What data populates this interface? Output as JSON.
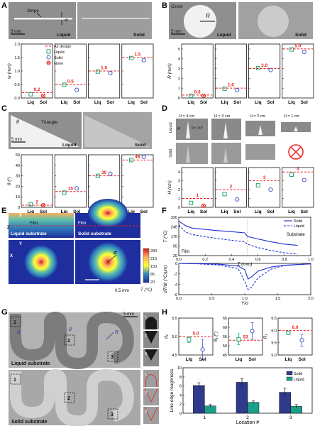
{
  "figure": {
    "panel_letters": [
      "A",
      "B",
      "C",
      "D",
      "E",
      "F",
      "G",
      "H"
    ],
    "colors": {
      "design": "#e8201c",
      "liquid": "#22a673",
      "solid": "#4b5cc4",
      "liquid_bar": "#1aa089",
      "solid_bar": "#2e3a8c",
      "photo_bg": "#8f8f8f",
      "photo_bg2": "#b2b2b2",
      "pattern": "#f1f1f1"
    },
    "legend_A": {
      "as_design": "As design",
      "liquid": "Liquid",
      "solid": "Solid",
      "none": "None"
    },
    "photo_labels": {
      "A": {
        "stripe": "Stripe",
        "w": "w",
        "scale": "5 mm",
        "liquid": "Liquid",
        "solid": "Solid"
      },
      "B": {
        "circle": "Circle",
        "R": "R",
        "scale": "5 mm",
        "liquid": "Liquid",
        "solid": "Solid"
      },
      "C": {
        "triangle": "Triangle",
        "theta": "θ",
        "scale": "5 mm",
        "liquid": "Liquid",
        "solid": "Solid"
      },
      "D": {
        "heights": [
          "H = 4 cm",
          "H = 3 cm",
          "H = 2 cm",
          "H = 1 cm"
        ],
        "theta": "θ = 10°",
        "H": "H",
        "liquid": "Liquid",
        "solid": "Solid"
      },
      "E": {
        "z": "Z",
        "x": "X",
        "y": "Y",
        "film": "Film",
        "liquid_sub": "Liquid substrate",
        "solid_sub": "Solid substrate",
        "sigma": "σ",
        "scale": "0.5 mm",
        "colorbar_label": "T (°C)",
        "colorbar_ticks": [
          "280",
          "215",
          "150",
          "85",
          "20"
        ]
      },
      "G": {
        "scale": "5 mm",
        "d": "d",
        "theta": "θ",
        "R": "R",
        "liquid_sub": "Liquid substrate",
        "solid_sub": "Solid substrate",
        "boxes": [
          "1",
          "2",
          "3"
        ]
      }
    }
  },
  "chart_data": [
    {
      "id": "A",
      "type": "scatter",
      "ylabel": "w (mm)",
      "ylim": [
        0,
        2.0
      ],
      "yticks": [
        "0.0",
        "0.5",
        "1.0",
        "1.5",
        "2.0"
      ],
      "categories": [
        "Liq",
        "Sol"
      ],
      "groups": [
        {
          "design": 0.2,
          "design_label": "0.2",
          "liquid": 0.14,
          "solid": null
        },
        {
          "design": 0.5,
          "design_label": "0.5",
          "liquid": 0.49,
          "solid": 0.3
        },
        {
          "design": 1.0,
          "design_label": "1.0",
          "liquid": 0.98,
          "solid": 0.92
        },
        {
          "design": 1.5,
          "design_label": "1.5",
          "liquid": 1.48,
          "solid": 1.4
        }
      ]
    },
    {
      "id": "B",
      "type": "scatter",
      "ylabel": "R (mm)",
      "ylim": [
        0,
        5.5
      ],
      "yticks": [
        "0",
        "1",
        "2",
        "3",
        "4",
        "5"
      ],
      "categories": [
        "Liq",
        "Sol"
      ],
      "groups": [
        {
          "design": 0.3,
          "design_label": "0.3",
          "liquid": 0.22,
          "solid": null
        },
        {
          "design": 1.0,
          "design_label": "1.0",
          "liquid": 0.95,
          "solid": 0.8
        },
        {
          "design": 3.0,
          "design_label": "3.0",
          "liquid": 3.05,
          "solid": 2.85
        },
        {
          "design": 5.0,
          "design_label": "5.0",
          "liquid": 4.95,
          "solid": 4.7
        }
      ]
    },
    {
      "id": "C",
      "type": "scatter",
      "ylabel": "θ (°)",
      "ylim": [
        0,
        50
      ],
      "yticks": [
        "0",
        "10",
        "20",
        "30",
        "40",
        "50"
      ],
      "categories": [
        "Liq",
        "Sol"
      ],
      "groups": [
        {
          "design": 2,
          "design_label": "2",
          "liquid": 3,
          "solid": null
        },
        {
          "design": 15,
          "design_label": "15",
          "liquid": 14,
          "solid": 18
        },
        {
          "design": 30,
          "design_label": "30",
          "liquid": 30,
          "solid": 32
        },
        {
          "design": 45,
          "design_label": "45",
          "liquid": 45,
          "solid": 48
        }
      ]
    },
    {
      "id": "D",
      "type": "scatter",
      "ylabel": "H (cm)",
      "ylim": [
        0,
        4.5
      ],
      "yticks": [
        "0",
        "1",
        "2",
        "3",
        "4"
      ],
      "categories": [
        "Liq",
        "Sol"
      ],
      "groups": [
        {
          "design": 1,
          "design_label": "1",
          "liquid": 0.5,
          "solid": null
        },
        {
          "design": 2,
          "design_label": "2",
          "liquid": 1.5,
          "solid": 0.9
        },
        {
          "design": 3,
          "design_label": "3",
          "liquid": 2.5,
          "solid": 2.0
        },
        {
          "design": 4,
          "design_label": "4",
          "liquid": 3.7,
          "solid": 3.1
        }
      ]
    },
    {
      "id": "F_top",
      "type": "line",
      "xlabel": "Z (mm)",
      "ylabel": "T (°C)",
      "xlim": [
        0,
        1.0
      ],
      "ylim": [
        20,
        320
      ],
      "xticks": [
        "0.0",
        "0.2",
        "0.4",
        "0.6",
        "0.8",
        "1.0"
      ],
      "yticks": [
        "20",
        "95",
        "170",
        "245",
        "320"
      ],
      "labels": {
        "film": "Film",
        "substrate": "Substrate"
      },
      "series": [
        {
          "name": "Solid",
          "style": "solid",
          "x": [
            0,
            0.05,
            0.1,
            0.2,
            0.3,
            0.4,
            0.5,
            0.52,
            0.6,
            0.7,
            0.8,
            0.9
          ],
          "y": [
            290,
            255,
            235,
            225,
            215,
            207,
            198,
            170,
            150,
            128,
            110,
            100
          ]
        },
        {
          "name": "Liquid",
          "style": "dashed",
          "x": [
            0,
            0.05,
            0.1,
            0.2,
            0.3,
            0.4,
            0.5,
            0.52,
            0.6,
            0.7,
            0.8,
            0.9
          ],
          "y": [
            260,
            205,
            185,
            168,
            153,
            140,
            128,
            110,
            82,
            60,
            42,
            32
          ]
        }
      ]
    },
    {
      "id": "F_bottom",
      "type": "line",
      "xlabel": "Y/σ",
      "ylabel": "dT/dr (°C/μm)",
      "xlim": [
        0,
        2.0
      ],
      "ylim": [
        -6,
        0
      ],
      "xticks": [
        "0.0",
        "0.5",
        "1.0",
        "1.5",
        "2.0"
      ],
      "yticks": [
        "0",
        "-2",
        "-4",
        "-6"
      ],
      "series": [
        {
          "name": "Solid",
          "style": "solid",
          "x": [
            0,
            0.3,
            0.6,
            0.9,
            1.0,
            1.05,
            1.1,
            1.2,
            1.4,
            1.6,
            2.0
          ],
          "y": [
            0,
            -0.05,
            -0.15,
            -0.5,
            -1.2,
            -3.0,
            -2.6,
            -1.5,
            -0.7,
            -0.35,
            -0.1
          ]
        },
        {
          "name": "Liquid",
          "style": "dashed",
          "x": [
            0,
            0.3,
            0.6,
            0.9,
            1.0,
            1.05,
            1.1,
            1.2,
            1.4,
            1.6,
            2.0
          ],
          "y": [
            0,
            -0.1,
            -0.3,
            -1.0,
            -3.5,
            -5.0,
            -4.6,
            -2.8,
            -1.1,
            -0.4,
            -0.1
          ]
        }
      ]
    },
    {
      "id": "H_top",
      "type": "scatter",
      "panels": [
        {
          "ylabel": "d₁",
          "ylim": [
            4.5,
            5.5
          ],
          "yticks": [
            "4.5",
            "5.0",
            "5.5"
          ],
          "design": 5.0,
          "design_label": "5.0",
          "liquid": {
            "mean": 4.92,
            "err": 0.08
          },
          "solid": {
            "mean": 4.65,
            "err": 0.28
          }
        },
        {
          "ylabel": "θ₁ (°)",
          "ylim": [
            45,
            65
          ],
          "yticks": [
            "45",
            "50",
            "55",
            "60",
            "65"
          ],
          "design": 53,
          "design_label": "53",
          "liquid": {
            "mean": 53.5,
            "err": 3.0
          },
          "solid": {
            "mean": 58.0,
            "err": 4.5
          }
        },
        {
          "ylabel": "R₁",
          "ylim": [
            5.0,
            6.5
          ],
          "yticks": [
            "5.0",
            "5.5",
            "6.0",
            "6.5"
          ],
          "design": 6.0,
          "design_label": "6.0",
          "liquid": {
            "mean": 5.9,
            "err": 0.07
          },
          "solid": {
            "mean": 5.6,
            "err": 0.25
          }
        }
      ],
      "categories": [
        "Liq",
        "Sol"
      ]
    },
    {
      "id": "H_bottom",
      "type": "bar",
      "xlabel": "Location #",
      "ylabel": "Line edge roughness",
      "categories": [
        "1",
        "2",
        "3"
      ],
      "ylim": [
        0,
        10
      ],
      "yticks": [
        "0",
        "2",
        "4",
        "6",
        "8",
        "10"
      ],
      "series": [
        {
          "name": "Solid",
          "values": [
            6.1,
            6.8,
            4.6
          ],
          "errors": [
            0.6,
            0.8,
            0.9
          ]
        },
        {
          "name": "Liquid",
          "values": [
            1.6,
            2.4,
            1.5
          ],
          "errors": [
            0.3,
            0.3,
            0.4
          ]
        }
      ]
    }
  ]
}
